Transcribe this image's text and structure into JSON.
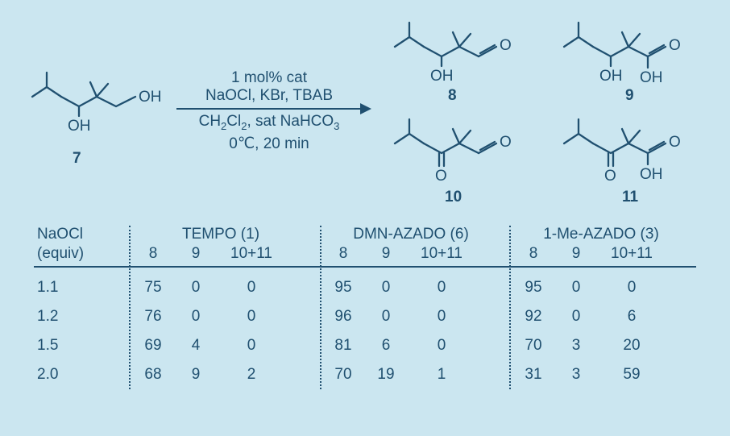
{
  "scheme": {
    "conditions_top": "1 mol% cat",
    "conditions_mid": "NaOCl, KBr, TBAB",
    "conditions_bot1": "CH₂Cl₂, sat NaHCO₃",
    "conditions_bot2": "0℃, 20 min",
    "compound_labels": {
      "sm": "7",
      "p8": "8",
      "p9": "9",
      "p10": "10",
      "p11": "11"
    },
    "annotations": {
      "sm_OH": "OH",
      "p8_OH": "OH",
      "p9_OH1": "OH",
      "p9_OH2": "OH",
      "p10_O": "O",
      "p11_O": "O",
      "p11_OH": "OH",
      "sm_primOH": "OH"
    },
    "colors": {
      "stroke": "#205070",
      "bg": "#cbe6f0"
    }
  },
  "table": {
    "header_left_line1": "NaOCl",
    "header_left_line2": "(equiv)",
    "groups": [
      {
        "title": "TEMPO (1)"
      },
      {
        "title": "DMN-AZADO (6)"
      },
      {
        "title": "1-Me-AZADO (3)"
      }
    ],
    "subheaders": [
      "8",
      "9",
      "10+11"
    ],
    "rows": [
      {
        "equiv": "1.1",
        "g1": [
          "75",
          "0",
          "0"
        ],
        "g2": [
          "95",
          "0",
          "0"
        ],
        "g3": [
          "95",
          "0",
          "0"
        ]
      },
      {
        "equiv": "1.2",
        "g1": [
          "76",
          "0",
          "0"
        ],
        "g2": [
          "96",
          "0",
          "0"
        ],
        "g3": [
          "92",
          "0",
          "6"
        ]
      },
      {
        "equiv": "1.5",
        "g1": [
          "69",
          "4",
          "0"
        ],
        "g2": [
          "81",
          "6",
          "0"
        ],
        "g3": [
          "70",
          "3",
          "20"
        ]
      },
      {
        "equiv": "2.0",
        "g1": [
          "68",
          "9",
          "2"
        ],
        "g2": [
          "70",
          "19",
          "1"
        ],
        "g3": [
          "31",
          "3",
          "59"
        ]
      }
    ],
    "styling": {
      "font_size_pt": 14,
      "rule_color": "#205070",
      "dotted_rule_color": "#205070",
      "text_color": "#205070"
    }
  }
}
